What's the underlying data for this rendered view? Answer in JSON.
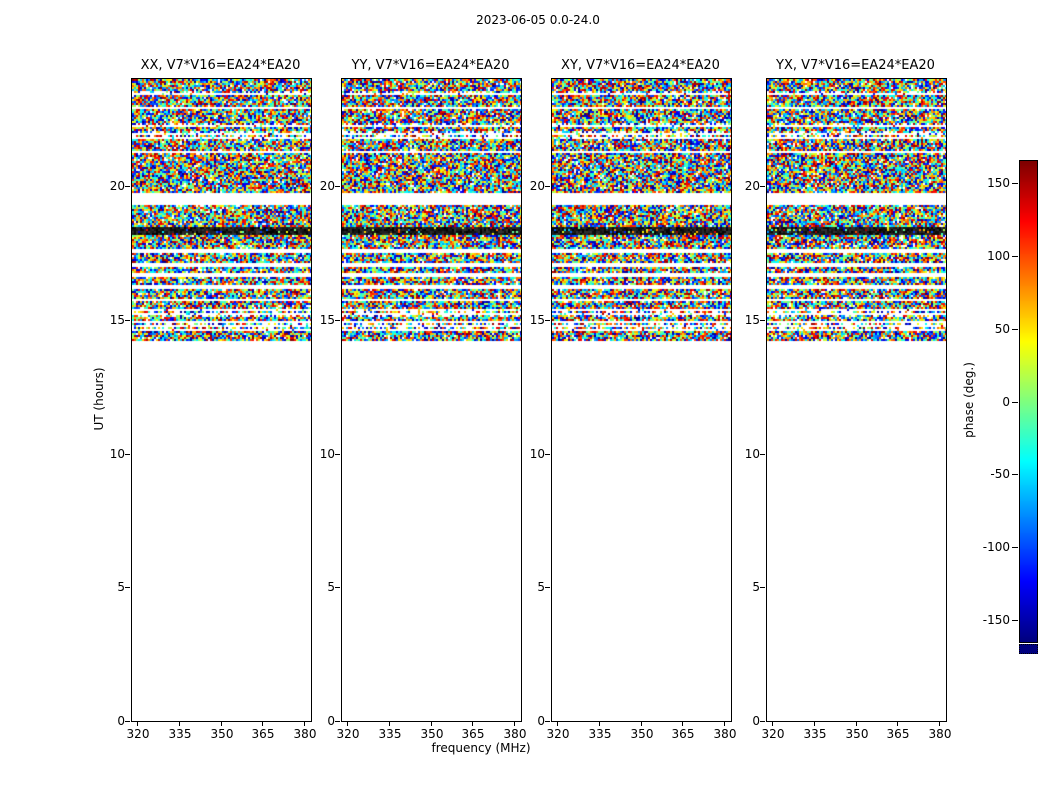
{
  "chart_data": {
    "type": "heatmap",
    "title": "2023-06-05 0.0-24.0",
    "xlabel": "frequency (MHz)",
    "ylabel": "UT (hours)",
    "panels": [
      {
        "title": "XX, V7*V16=EA24*EA20"
      },
      {
        "title": "YY, V7*V16=EA24*EA20"
      },
      {
        "title": "XY, V7*V16=EA24*EA20"
      },
      {
        "title": "YX, V7*V16=EA24*EA20"
      }
    ],
    "xticks": [
      320,
      335,
      350,
      365,
      380
    ],
    "yticks": [
      0,
      5,
      10,
      15,
      20
    ],
    "xlim": [
      318,
      382
    ],
    "ylim": [
      0,
      24
    ],
    "colorbar": {
      "label": "phase (deg.)",
      "ticks": [
        150,
        100,
        50,
        0,
        -50,
        -100,
        -150
      ],
      "vmin": -165,
      "vmax": 165,
      "colormap": "jet"
    },
    "data_description": "Random uniformly-distributed interferometric phase noise (jet colormap) covering all frequencies from UT ~14.2 h to 24.0 h in every panel; blank (no data) below UT 14.2 h; horizontal blank gaps, striped sections and one dark band as listed in ut_bands.",
    "ut_bands": [
      {
        "ut": [
          14.2,
          14.55
        ],
        "type": "noise"
      },
      {
        "ut": [
          14.55,
          14.85
        ],
        "type": "sparse"
      },
      {
        "ut": [
          14.95,
          15.1
        ],
        "type": "noise"
      },
      {
        "ut": [
          15.1,
          15.35
        ],
        "type": "sparse"
      },
      {
        "ut": [
          15.45,
          15.7
        ],
        "type": "noise"
      },
      {
        "ut": [
          15.8,
          16.1
        ],
        "type": "noise"
      },
      {
        "ut": [
          16.35,
          16.6
        ],
        "type": "noise"
      },
      {
        "ut": [
          16.75,
          16.95
        ],
        "type": "noise"
      },
      {
        "ut": [
          17.15,
          17.5
        ],
        "type": "noise"
      },
      {
        "ut": [
          17.7,
          18.15
        ],
        "type": "noise"
      },
      {
        "ut": [
          18.15,
          18.45
        ],
        "type": "dark"
      },
      {
        "ut": [
          18.45,
          19.3
        ],
        "type": "noise"
      },
      {
        "ut": [
          19.75,
          21.2
        ],
        "type": "noise"
      },
      {
        "ut": [
          21.3,
          21.75
        ],
        "type": "noise"
      },
      {
        "ut": [
          21.75,
          22.05
        ],
        "type": "sparse"
      },
      {
        "ut": [
          22.05,
          22.15
        ],
        "type": "noise"
      },
      {
        "ut": [
          22.15,
          22.4
        ],
        "type": "sparse"
      },
      {
        "ut": [
          22.4,
          22.85
        ],
        "type": "noise"
      },
      {
        "ut": [
          22.95,
          23.35
        ],
        "type": "noise"
      },
      {
        "ut": [
          23.35,
          23.55
        ],
        "type": "sparse"
      },
      {
        "ut": [
          23.55,
          24.0
        ],
        "type": "noise"
      }
    ]
  }
}
